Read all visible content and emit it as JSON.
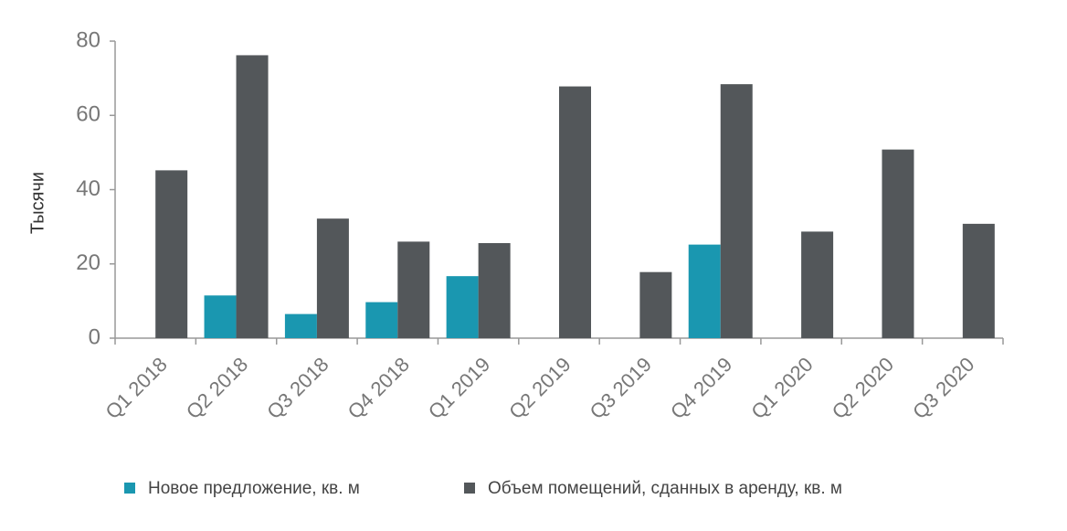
{
  "chart_data": {
    "type": "bar",
    "ylabel": "Тысячи",
    "categories": [
      "Q1 2018",
      "Q2 2018",
      "Q3 2018",
      "Q4 2018",
      "Q1 2019",
      "Q2 2019",
      "Q3 2019",
      "Q4 2019",
      "Q1 2020",
      "Q2 2020",
      "Q3 2020"
    ],
    "series": [
      {
        "name": "Новое предложение, кв. м",
        "color": "#1a97b0",
        "values": [
          null,
          11.5,
          6.5,
          9.7,
          16.7,
          null,
          null,
          25.2,
          null,
          null,
          null
        ]
      },
      {
        "name": "Объем помещений, сданных в аренду, кв. м",
        "color": "#53575a",
        "values": [
          45.2,
          76.2,
          32.2,
          26.0,
          25.6,
          67.8,
          17.8,
          68.4,
          28.7,
          50.8,
          30.8
        ]
      }
    ],
    "ylim": [
      0,
      80
    ],
    "yticks": [
      0,
      20,
      40,
      60,
      80
    ],
    "grid": false
  }
}
